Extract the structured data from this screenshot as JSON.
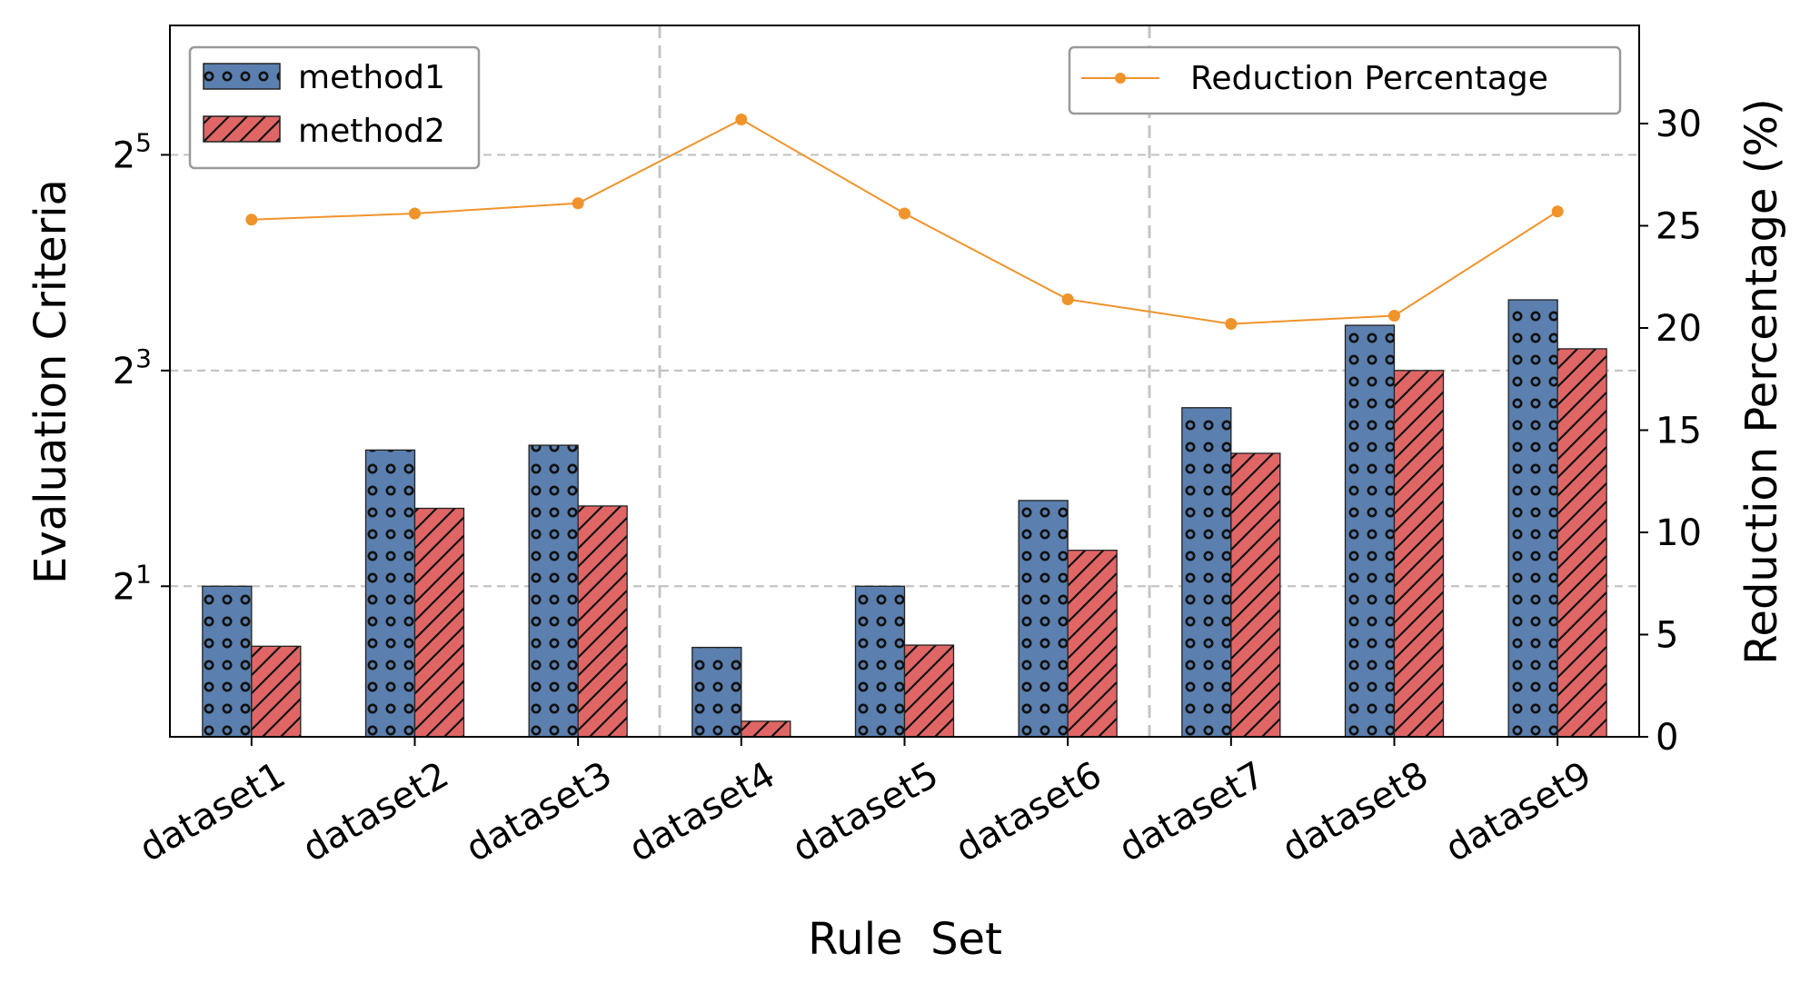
{
  "chart_data": {
    "type": "bar",
    "xlabel": "Rule  Set",
    "ylabel": "Evaluation Criteria",
    "y2label": "Reduction Percentage (%)",
    "categories": [
      "dataset1",
      "dataset2",
      "dataset3",
      "dataset4",
      "dataset5",
      "dataset6",
      "dataset7",
      "dataset8",
      "dataset9"
    ],
    "yscale": "log2",
    "ylim": [
      0.76,
      73.5
    ],
    "yticks": [
      {
        "base": "2",
        "exp": "1"
      },
      {
        "base": "2",
        "exp": "3"
      },
      {
        "base": "2",
        "exp": "5"
      }
    ],
    "y2lim": [
      0,
      34.8
    ],
    "y2ticks": [
      0,
      5,
      10,
      15,
      20,
      25,
      30
    ],
    "series": [
      {
        "name": "method1",
        "type": "bar",
        "axis": "left",
        "color": "#5b7fae",
        "hatch": "circles",
        "values": [
          2.0,
          4.8,
          4.95,
          1.35,
          2.0,
          3.47,
          6.3,
          10.7,
          12.6
        ]
      },
      {
        "name": "method2",
        "type": "bar",
        "axis": "left",
        "color": "#e06666",
        "hatch": "diagonal",
        "values": [
          1.36,
          3.3,
          3.35,
          0.84,
          1.37,
          2.52,
          4.7,
          8.0,
          9.2
        ]
      },
      {
        "name": "Reduction Percentage",
        "type": "line",
        "axis": "right",
        "color": "#f0932b",
        "values": [
          25.3,
          25.6,
          26.1,
          30.2,
          25.6,
          21.4,
          20.2,
          20.6,
          25.7
        ]
      }
    ],
    "vlines_after": [
      "dataset3",
      "dataset6"
    ],
    "grid": "horizontal dashed",
    "legend_left_position": "top-left",
    "legend_right_position": "top-right"
  }
}
